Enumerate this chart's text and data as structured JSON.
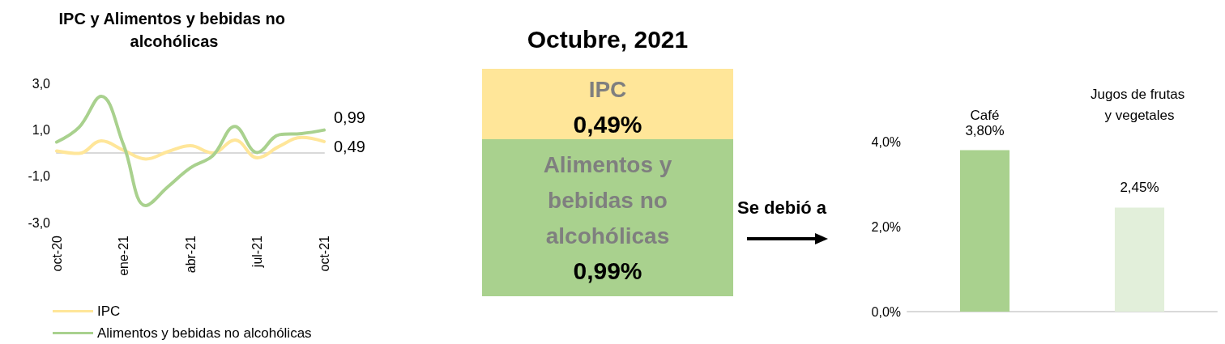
{
  "chart_data": [
    {
      "type": "line",
      "title": "IPC y Alimentos y bebidas no alcohólicas",
      "categories": [
        "oct-20",
        null,
        null,
        "ene-21",
        null,
        null,
        "abr-21",
        null,
        null,
        "jul-21",
        null,
        null,
        "oct-21"
      ],
      "series": [
        {
          "name": "IPC",
          "color": "#ffe699",
          "values": [
            0.09,
            -0.02,
            0.52,
            0.12,
            -0.26,
            0.06,
            0.31,
            0,
            0.56,
            -0.21,
            0.29,
            0.67,
            0.49
          ],
          "value_labels": [
            null,
            null,
            null,
            null,
            null,
            null,
            null,
            null,
            null,
            null,
            null,
            null,
            "0,49"
          ]
        },
        {
          "name": "Alimentos y bebidas no alcohólicas",
          "color": "#a9d18e",
          "values": [
            0.47,
            1.1,
            2.44,
            0.35,
            -2.27,
            -1.45,
            -0.64,
            -0.12,
            1.14,
            0.02,
            0.79,
            0.84,
            0.99
          ],
          "value_labels": [
            null,
            null,
            null,
            null,
            null,
            null,
            null,
            null,
            null,
            null,
            null,
            null,
            "0,99"
          ]
        }
      ],
      "ylim": [
        -3,
        3
      ],
      "yticks": [
        {
          "value": -3,
          "label": "-3,0"
        },
        {
          "value": -1,
          "label": "-1,0"
        },
        {
          "value": 1,
          "label": "1,0"
        },
        {
          "value": 3,
          "label": "3,0"
        }
      ],
      "grid": false,
      "legend": "bottom left",
      "marker": "none",
      "line_style": "solid"
    },
    {
      "type": "other",
      "title": "Octubre, 2021",
      "categories": [
        "IPC",
        "Alimentos y bebidas no alcohólicas"
      ],
      "value_labels": [
        "0,49%",
        "0,99%"
      ],
      "colors": [
        "#ffe699",
        "#a9d18e"
      ],
      "annotations": [
        "Se debió a"
      ]
    },
    {
      "type": "bar",
      "categories": [
        "Café",
        "Jugos de frutas y vegetales"
      ],
      "values": [
        3.8,
        2.45
      ],
      "colors": [
        "#a9d18e",
        "#e2efda"
      ],
      "value_labels": [
        "3,80%",
        "2,45%"
      ],
      "ylim": [
        0,
        4
      ],
      "yticks": [
        {
          "value": 0,
          "label": "0,0%"
        },
        {
          "value": 2,
          "label": "2,0%"
        },
        {
          "value": 4,
          "label": "4,0%"
        }
      ],
      "grid": false,
      "legend": false
    }
  ]
}
